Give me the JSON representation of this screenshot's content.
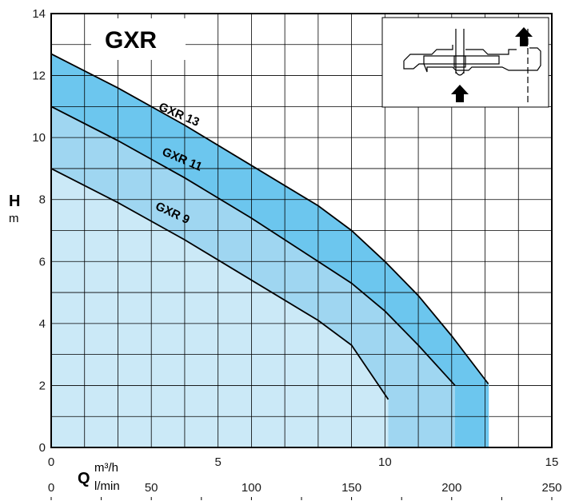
{
  "chart_data": {
    "type": "area",
    "title": "GXR",
    "ylabel": "H",
    "yunit": "m",
    "xlabel": "Q",
    "xunit_primary": "m³/h",
    "xunit_secondary": "l/min",
    "xlim": [
      0,
      15
    ],
    "ylim": [
      0,
      14
    ],
    "xticks": [
      0,
      5,
      10,
      15
    ],
    "yticks": [
      0,
      2,
      4,
      6,
      8,
      10,
      12,
      14
    ],
    "secondary_xticks": [
      0,
      50,
      100,
      150,
      200,
      250
    ],
    "grid": true,
    "series": [
      {
        "name": "GXR 13",
        "color": "#6cc6ee",
        "x": [
          0,
          2,
          4,
          6,
          8,
          9,
          10,
          11,
          12,
          13.1
        ],
        "y": [
          12.7,
          11.6,
          10.4,
          9.1,
          7.8,
          7.0,
          6.0,
          4.9,
          3.6,
          2.05
        ]
      },
      {
        "name": "GXR 11",
        "color": "#9fd6f1",
        "x": [
          0,
          2,
          4,
          6,
          8,
          9,
          10,
          11,
          12.1
        ],
        "y": [
          11.0,
          9.9,
          8.7,
          7.4,
          6.0,
          5.3,
          4.4,
          3.3,
          2.0
        ]
      },
      {
        "name": "GXR 9",
        "color": "#cbe9f7",
        "x": [
          0,
          2,
          4,
          6,
          8,
          9,
          10.1
        ],
        "y": [
          9.0,
          7.9,
          6.7,
          5.4,
          4.1,
          3.3,
          1.55
        ]
      }
    ]
  }
}
